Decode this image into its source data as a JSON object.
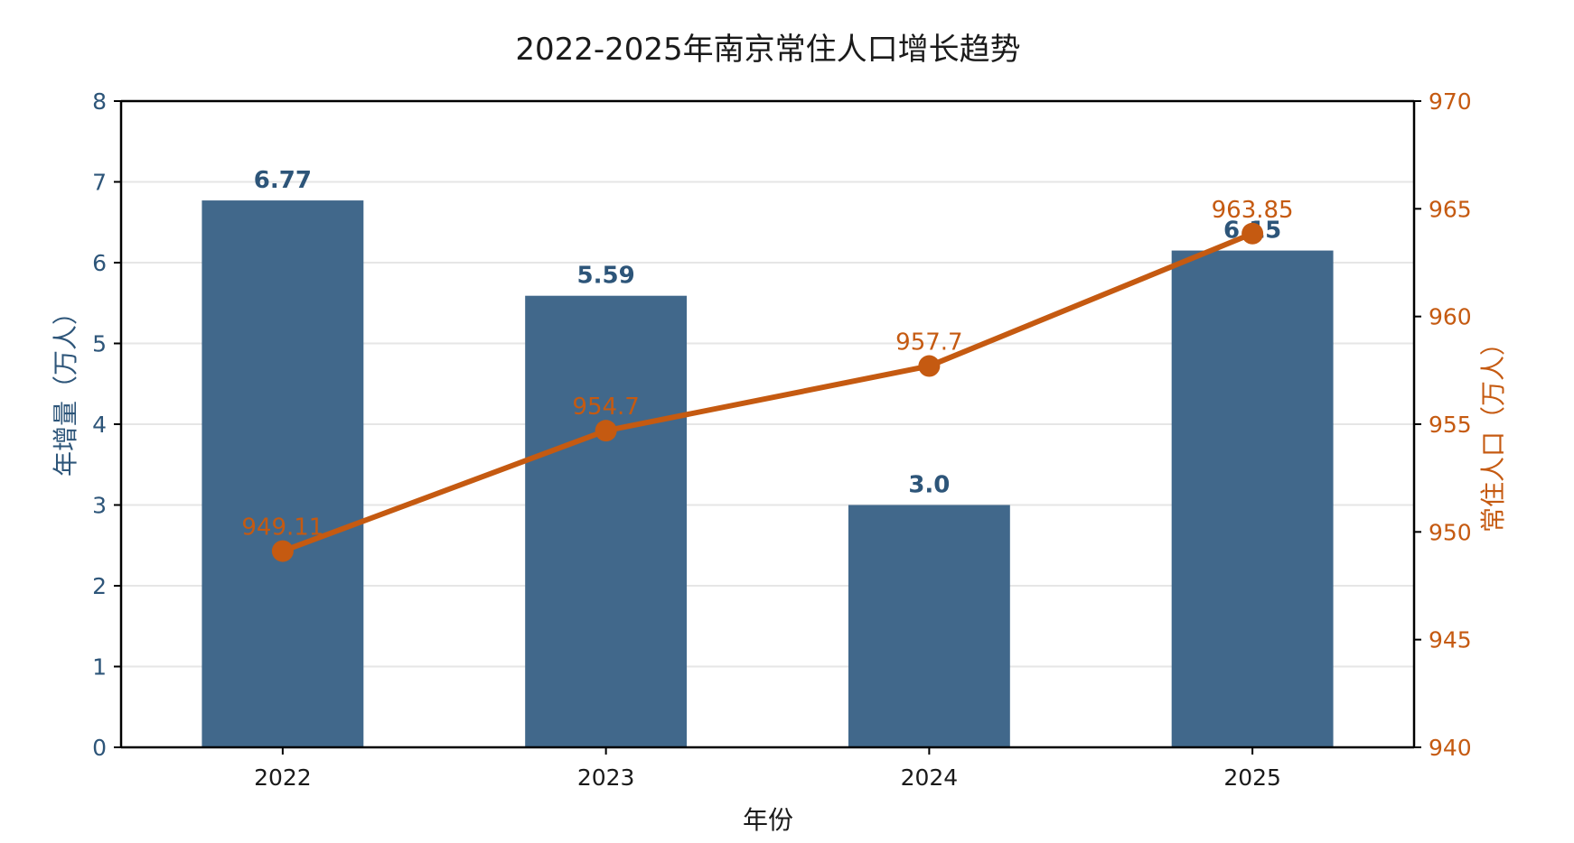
{
  "colors": {
    "bar": "#41688b",
    "bar_label": "#2d5579",
    "left_axis": "#2d5579",
    "line": "#c55a11",
    "right_axis": "#c55a11",
    "grid": "#e6e6e6",
    "frame": "#000000"
  },
  "chart_data": {
    "type": "bar",
    "title": "2022-2025年南京常住人口增长趋势",
    "xlabel": "年份",
    "ylabel": "年增量（万人）",
    "y2label": "常住人口（万人）",
    "categories": [
      "2022",
      "2023",
      "2024",
      "2025"
    ],
    "ylim": [
      0,
      8
    ],
    "y2lim": [
      940,
      970
    ],
    "yticks": [
      "0",
      "1",
      "2",
      "3",
      "4",
      "5",
      "6",
      "7",
      "8"
    ],
    "y2ticks": [
      "940",
      "945",
      "950",
      "955",
      "960",
      "965",
      "970"
    ],
    "grid": true,
    "series": [
      {
        "name": "年增量",
        "type": "bar",
        "axis": "left",
        "values": [
          6.77,
          5.59,
          3.0,
          6.15
        ],
        "labels": [
          "6.77",
          "5.59",
          "3.0",
          "6.15"
        ]
      },
      {
        "name": "常住人口",
        "type": "line",
        "axis": "right",
        "values": [
          949.11,
          954.7,
          957.7,
          963.85
        ],
        "labels": [
          "949.11",
          "954.7",
          "957.7",
          "963.85"
        ]
      }
    ]
  }
}
